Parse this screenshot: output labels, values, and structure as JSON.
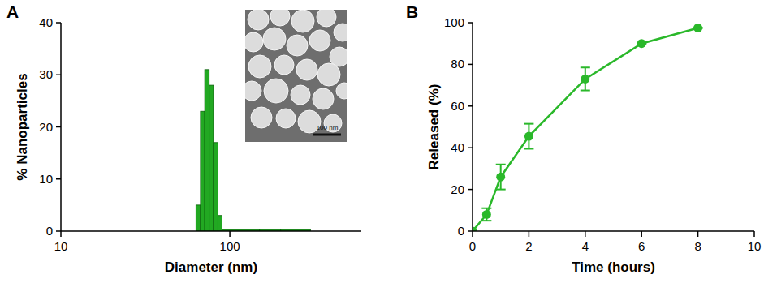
{
  "chart_data": [
    {
      "type": "histogram",
      "title": "A",
      "xlabel": "Diameter (nm)",
      "ylabel": "% Nanoparticles",
      "bins": [
        63,
        67,
        71,
        75.5,
        80,
        85,
        90,
        150,
        200,
        300
      ],
      "values": [
        5,
        23,
        31,
        28,
        17,
        3,
        0.3,
        0.3,
        0.3
      ],
      "color": "#22a822",
      "log": "x",
      "xlim": [
        10,
        600
      ],
      "xticks": [
        10,
        100
      ],
      "ylim": [
        0,
        40
      ],
      "yticks": [
        0,
        10,
        20,
        30,
        40
      ],
      "annotations": [
        "100 nm"
      ]
    },
    {
      "type": "line",
      "title": "B",
      "xlabel": "Time (hours)",
      "ylabel": "Released (%)",
      "x": [
        0,
        0.5,
        1,
        2,
        4,
        6,
        8
      ],
      "values": [
        0,
        8,
        26,
        45.5,
        73,
        90,
        97.5
      ],
      "errors": [
        0,
        3,
        6,
        6,
        5.5,
        0,
        0
      ],
      "color": "#2ab82a",
      "marker": "circle",
      "xlim": [
        0,
        10
      ],
      "xticks": [
        0,
        2,
        4,
        6,
        8,
        10
      ],
      "ylim": [
        0,
        100
      ],
      "yticks": [
        0,
        20,
        40,
        60,
        80,
        100
      ]
    }
  ]
}
